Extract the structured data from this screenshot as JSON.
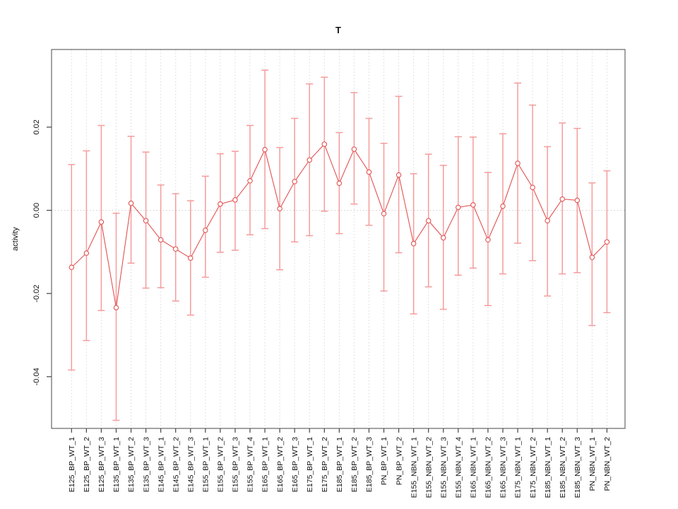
{
  "chart_data": {
    "type": "line",
    "subtype": "points-with-error-bars",
    "title": "T",
    "xlabel": "",
    "ylabel": "activity",
    "ylim": [
      -0.0524,
      0.0387
    ],
    "yticks": [
      0.02,
      0.0,
      -0.02,
      -0.04
    ],
    "grid": {
      "vertical_per_category": true,
      "zero_line": true,
      "style": "dotted"
    },
    "legend": null,
    "categories": [
      "E125_BP_WT_1",
      "E125_BP_WT_2",
      "E125_BP_WT_3",
      "E135_BP_WT_1",
      "E135_BP_WT_2",
      "E135_BP_WT_3",
      "E145_BP_WT_1",
      "E145_BP_WT_2",
      "E145_BP_WT_3",
      "E155_BP_WT_1",
      "E155_BP_WT_2",
      "E155_BP_WT_3",
      "E155_BP_WT_4",
      "E165_BP_WT_1",
      "E165_BP_WT_2",
      "E165_BP_WT_3",
      "E175_BP_WT_1",
      "E175_BP_WT_2",
      "E185_BP_WT_1",
      "E185_BP_WT_2",
      "E185_BP_WT_3",
      "PN_BP_WT_1",
      "PN_BP_WT_2",
      "E155_NBN_WT_1",
      "E155_NBN_WT_2",
      "E155_NBN_WT_3",
      "E155_NBN_WT_4",
      "E165_NBN_WT_1",
      "E165_NBN_WT_2",
      "E165_NBN_WT_3",
      "E175_NBN_WT_1",
      "E175_NBN_WT_2",
      "E185_NBN_WT_1",
      "E185_NBN_WT_2",
      "E185_NBN_WT_3",
      "PN_NBN_WT_1",
      "PN_NBN_WT_2"
    ],
    "values": [
      -0.0137,
      -0.0103,
      -0.0028,
      -0.0234,
      0.0017,
      -0.0025,
      -0.0071,
      -0.0093,
      -0.0115,
      -0.0048,
      0.0015,
      0.0025,
      0.0071,
      0.0146,
      0.0004,
      0.0069,
      0.0121,
      0.0159,
      0.0065,
      0.0147,
      0.0092,
      -0.0008,
      0.0085,
      -0.008,
      -0.0025,
      -0.0066,
      0.0007,
      0.0013,
      -0.0071,
      0.001,
      0.0113,
      0.0055,
      -0.0025,
      0.0027,
      0.0024,
      -0.0113,
      -0.0076
    ],
    "error_high": [
      0.011,
      0.0143,
      0.0204,
      -0.0007,
      0.0178,
      0.014,
      0.0061,
      0.004,
      0.0023,
      0.0082,
      0.0136,
      0.0142,
      0.0204,
      0.0337,
      0.0151,
      0.0221,
      0.0304,
      0.032,
      0.0187,
      0.0283,
      0.0221,
      0.0161,
      0.0274,
      0.0088,
      0.0135,
      0.0108,
      0.0177,
      0.0176,
      0.0091,
      0.0184,
      0.0306,
      0.0253,
      0.0153,
      0.021,
      0.0197,
      0.0066,
      0.0095
    ],
    "error_low": [
      -0.0384,
      -0.0313,
      -0.0241,
      -0.0505,
      -0.0127,
      -0.0187,
      -0.0186,
      -0.0218,
      -0.0252,
      -0.0161,
      -0.0101,
      -0.0096,
      -0.0059,
      -0.0044,
      -0.0143,
      -0.0076,
      -0.0061,
      -0.0002,
      -0.0056,
      0.0015,
      -0.0036,
      -0.0194,
      -0.0102,
      -0.0249,
      -0.0184,
      -0.0238,
      -0.0156,
      -0.0139,
      -0.0229,
      -0.0153,
      -0.0079,
      -0.0121,
      -0.0206,
      -0.0153,
      -0.015,
      -0.0277,
      -0.0246
    ],
    "colors": {
      "point": "#e25252",
      "line": "#e25252",
      "error_bar": "#f59c9c",
      "grid": "#d9d9d9",
      "zero_line": "#cfcfcf",
      "axis": "#666666",
      "tick": "#444444",
      "text": "#111111",
      "background": "#ffffff"
    }
  }
}
